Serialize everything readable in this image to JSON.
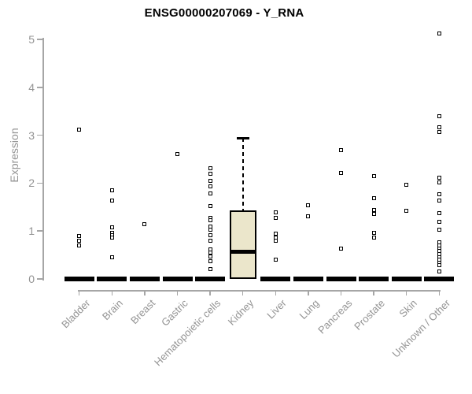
{
  "title": "ENSG00000207069 - Y_RNA",
  "chart_data": {
    "type": "boxplot",
    "title": "ENSG00000207069 - Y_RNA",
    "xlabel": "",
    "ylabel": "Expression",
    "ylim": [
      0,
      5
    ],
    "yticks": [
      0,
      1,
      2,
      3,
      4,
      5
    ],
    "grid": false,
    "legend": false,
    "categories": [
      "Bladder",
      "Brain",
      "Breast",
      "Gastric",
      "Hematopoietic cells",
      "Kidney",
      "Liver",
      "Lung",
      "Pancreas",
      "Prostate",
      "Skin",
      "Unknown / Other"
    ],
    "boxes": [
      {
        "category": "Bladder",
        "q1": 0,
        "median": 0,
        "q3": 0,
        "whisker_low": 0,
        "whisker_high": 0,
        "outliers": [
          3.12,
          0.9,
          0.8,
          0.7
        ]
      },
      {
        "category": "Brain",
        "q1": 0,
        "median": 0,
        "q3": 0,
        "whisker_low": 0,
        "whisker_high": 0,
        "outliers": [
          1.85,
          1.64,
          1.07,
          0.97,
          0.92,
          0.86,
          0.45
        ]
      },
      {
        "category": "Breast",
        "q1": 0,
        "median": 0,
        "q3": 0,
        "whisker_low": 0,
        "whisker_high": 0,
        "outliers": [
          1.15
        ]
      },
      {
        "category": "Gastric",
        "q1": 0,
        "median": 0,
        "q3": 0,
        "whisker_low": 0,
        "whisker_high": 0,
        "outliers": [
          2.61
        ]
      },
      {
        "category": "Hematopoietic cells",
        "q1": 0,
        "median": 0,
        "q3": 0,
        "whisker_low": 0,
        "whisker_high": 0,
        "outliers": [
          2.31,
          2.19,
          2.05,
          1.93,
          1.78,
          1.52,
          1.28,
          1.22,
          1.1,
          1.02,
          0.92,
          0.79,
          0.61,
          0.55,
          0.47,
          0.37,
          0.2
        ]
      },
      {
        "category": "Kidney",
        "q1": 0,
        "median": 0.56,
        "q3": 1.43,
        "whisker_low": 0,
        "whisker_high": 2.94,
        "outliers": []
      },
      {
        "category": "Liver",
        "q1": 0,
        "median": 0,
        "q3": 0,
        "whisker_low": 0,
        "whisker_high": 0,
        "outliers": [
          1.39,
          1.27,
          0.95,
          0.87,
          0.8,
          0.41
        ]
      },
      {
        "category": "Lung",
        "q1": 0,
        "median": 0,
        "q3": 0,
        "whisker_low": 0,
        "whisker_high": 0,
        "outliers": [
          1.53,
          1.3
        ]
      },
      {
        "category": "Pancreas",
        "q1": 0,
        "median": 0,
        "q3": 0,
        "whisker_low": 0,
        "whisker_high": 0,
        "outliers": [
          2.69,
          2.22,
          0.63
        ]
      },
      {
        "category": "Prostate",
        "q1": 0,
        "median": 0,
        "q3": 0,
        "whisker_low": 0,
        "whisker_high": 0,
        "outliers": [
          2.15,
          1.68,
          1.44,
          1.35,
          0.97,
          0.86
        ]
      },
      {
        "category": "Skin",
        "q1": 0,
        "median": 0,
        "q3": 0,
        "whisker_low": 0,
        "whisker_high": 0,
        "outliers": [
          1.96,
          1.43
        ]
      },
      {
        "category": "Unknown / Other",
        "q1": 0,
        "median": 0,
        "q3": 0,
        "whisker_low": 0,
        "whisker_high": 0,
        "outliers": [
          5.12,
          3.4,
          3.16,
          3.07,
          2.12,
          2.01,
          1.77,
          1.64,
          1.37,
          1.19,
          1.02,
          0.77,
          0.7,
          0.64,
          0.58,
          0.52,
          0.46,
          0.4,
          0.34,
          0.29,
          0.16
        ]
      }
    ],
    "colors": {
      "box_fill": "#EBE6CB",
      "box_border": "#000000",
      "median": "#000000",
      "collapsed_bar": "#000000",
      "outlier": "#000000",
      "axis_text": "#949494",
      "axis_line": "#A6A6A6",
      "title": "#000000",
      "background": "#FFFFFF"
    }
  }
}
